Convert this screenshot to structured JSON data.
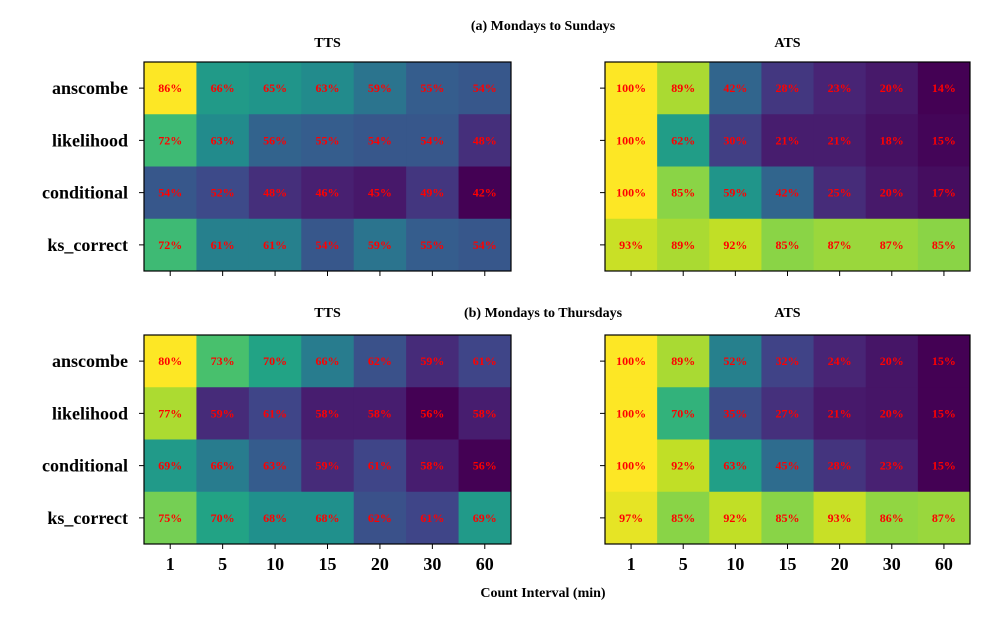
{
  "figure": {
    "xlabel": "Count Interval (min)",
    "colormap": "viridis",
    "value_range": [
      0.14,
      1.0
    ],
    "label_color": "#ff0000"
  },
  "chart_data": [
    {
      "type": "heatmap",
      "section_title": "(a) Mondays to Sundays",
      "title": "TTS",
      "rows": [
        "anscombe",
        "likelihood",
        "conditional",
        "ks_correct"
      ],
      "columns": [
        "1",
        "5",
        "10",
        "15",
        "20",
        "30",
        "60"
      ],
      "values": [
        [
          86,
          66,
          65,
          63,
          59,
          55,
          54
        ],
        [
          72,
          63,
          56,
          55,
          54,
          54,
          48
        ],
        [
          54,
          52,
          48,
          46,
          45,
          49,
          42
        ],
        [
          72,
          61,
          61,
          54,
          59,
          55,
          54
        ]
      ],
      "labels": [
        [
          "86%",
          "66%",
          "65%",
          "63%",
          "59%",
          "55%",
          "54%"
        ],
        [
          "72%",
          "63%",
          "56%",
          "55%",
          "54%",
          "54%",
          "48%"
        ],
        [
          "54%",
          "52%",
          "48%",
          "46%",
          "45%",
          "49%",
          "42%"
        ],
        [
          "72%",
          "61%",
          "61%",
          "54%",
          "59%",
          "55%",
          "54%"
        ]
      ]
    },
    {
      "type": "heatmap",
      "title": "ATS",
      "rows": [
        "anscombe",
        "likelihood",
        "conditional",
        "ks_correct"
      ],
      "columns": [
        "1",
        "5",
        "10",
        "15",
        "20",
        "30",
        "60"
      ],
      "values": [
        [
          100,
          89,
          42,
          28,
          23,
          20,
          14
        ],
        [
          100,
          62,
          30,
          21,
          21,
          18,
          15
        ],
        [
          100,
          85,
          59,
          42,
          25,
          20,
          17
        ],
        [
          93,
          89,
          92,
          85,
          87,
          87,
          85
        ]
      ],
      "labels": [
        [
          "100%",
          "89%",
          "42%",
          "28%",
          "23%",
          "20%",
          "14%"
        ],
        [
          "100%",
          "62%",
          "30%",
          "21%",
          "21%",
          "18%",
          "15%"
        ],
        [
          "100%",
          "85%",
          "59%",
          "42%",
          "25%",
          "20%",
          "17%"
        ],
        [
          "93%",
          "89%",
          "92%",
          "85%",
          "87%",
          "87%",
          "85%"
        ]
      ]
    },
    {
      "type": "heatmap",
      "section_title": "(b) Mondays to Thursdays",
      "title": "TTS",
      "rows": [
        "anscombe",
        "likelihood",
        "conditional",
        "ks_correct"
      ],
      "columns": [
        "1",
        "5",
        "10",
        "15",
        "20",
        "30",
        "60"
      ],
      "values": [
        [
          80,
          73,
          70,
          66,
          62,
          59,
          61
        ],
        [
          77,
          59,
          61,
          58,
          58,
          56,
          58
        ],
        [
          69,
          66,
          63,
          59,
          61,
          58,
          56
        ],
        [
          75,
          70,
          68,
          68,
          62,
          61,
          69
        ]
      ],
      "labels": [
        [
          "80%",
          "73%",
          "70%",
          "66%",
          "62%",
          "59%",
          "61%"
        ],
        [
          "77%",
          "59%",
          "61%",
          "58%",
          "58%",
          "56%",
          "58%"
        ],
        [
          "69%",
          "66%",
          "63%",
          "59%",
          "61%",
          "58%",
          "56%"
        ],
        [
          "75%",
          "70%",
          "68%",
          "68%",
          "62%",
          "61%",
          "69%"
        ]
      ]
    },
    {
      "type": "heatmap",
      "title": "ATS",
      "rows": [
        "anscombe",
        "likelihood",
        "conditional",
        "ks_correct"
      ],
      "columns": [
        "1",
        "5",
        "10",
        "15",
        "20",
        "30",
        "60"
      ],
      "values": [
        [
          100,
          89,
          52,
          32,
          24,
          20,
          15
        ],
        [
          100,
          70,
          35,
          27,
          21,
          20,
          15
        ],
        [
          100,
          92,
          63,
          45,
          28,
          23,
          15
        ],
        [
          97,
          85,
          92,
          85,
          93,
          86,
          87
        ]
      ],
      "labels": [
        [
          "100%",
          "89%",
          "52%",
          "32%",
          "24%",
          "20%",
          "15%"
        ],
        [
          "100%",
          "70%",
          "35%",
          "27%",
          "21%",
          "20%",
          "15%"
        ],
        [
          "100%",
          "92%",
          "63%",
          "45%",
          "28%",
          "23%",
          "15%"
        ],
        [
          "97%",
          "85%",
          "92%",
          "85%",
          "93%",
          "86%",
          "87%"
        ]
      ]
    }
  ]
}
